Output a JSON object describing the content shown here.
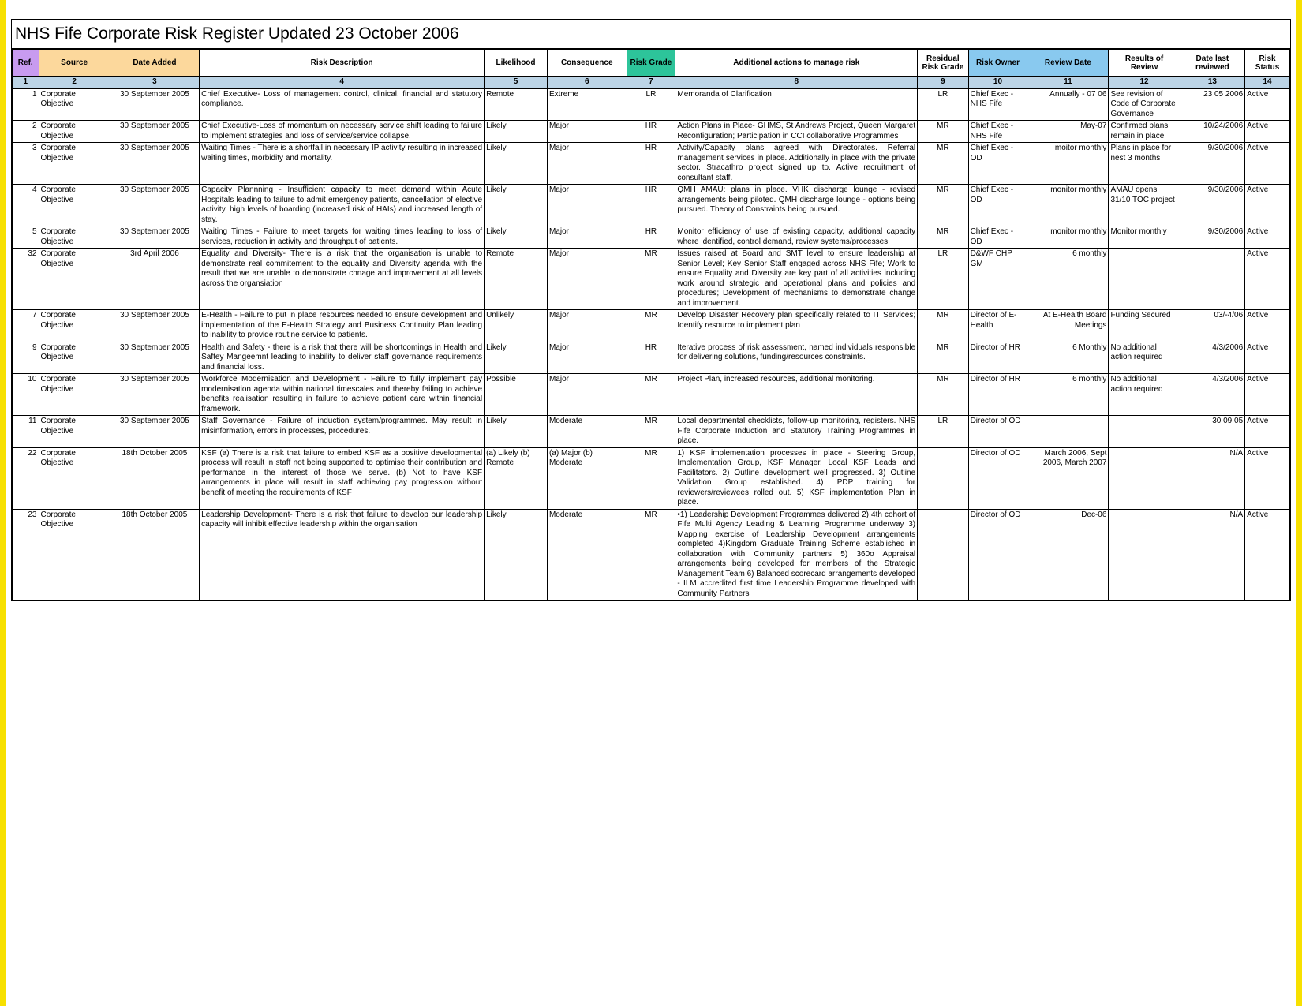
{
  "title": "NHS Fife Corporate Risk Register Updated 23 October 2006",
  "colors": {
    "yellow_border": "#f7e000",
    "header_ref": "#c89bf0",
    "header_source": "#fcd89c",
    "header_date_added": "#fcd89c",
    "header_risk_grade": "#2dc49a",
    "header_risk_owner": "#89c9ef",
    "header_review_date": "#89c9ef",
    "numrow_bg": "#bcd4e6"
  },
  "columns": [
    {
      "key": "ref",
      "label": "Ref."
    },
    {
      "key": "source",
      "label": "Source"
    },
    {
      "key": "date_added",
      "label": "Date Added"
    },
    {
      "key": "risk_description",
      "label": "Risk Description"
    },
    {
      "key": "likelihood",
      "label": "Likelihood"
    },
    {
      "key": "consequence",
      "label": "Consequence"
    },
    {
      "key": "risk_grade",
      "label": "Risk Grade"
    },
    {
      "key": "actions",
      "label": "Additional actions to manage risk"
    },
    {
      "key": "residual_grade",
      "label": "Residual Risk Grade"
    },
    {
      "key": "risk_owner",
      "label": "Risk Owner"
    },
    {
      "key": "review_date",
      "label": "Review Date"
    },
    {
      "key": "results",
      "label": "Results of Review"
    },
    {
      "key": "date_last",
      "label": "Date last reviewed"
    },
    {
      "key": "risk_status",
      "label": "Risk Status"
    }
  ],
  "col_numbers": [
    "1",
    "2",
    "3",
    "4",
    "5",
    "6",
    "7",
    "8",
    "9",
    "10",
    "11",
    "12",
    "13",
    "14"
  ],
  "rows": [
    {
      "ref": "1",
      "source": "Corporate Objective",
      "date_added": "30 September 2005",
      "risk_description": "Chief Executive- Loss of management control, clinical, financial and statutory compliance.",
      "likelihood": "Remote",
      "consequence": "Extreme",
      "risk_grade": "LR",
      "actions": "Memoranda of Clarification",
      "residual_grade": "LR",
      "risk_owner": "Chief Exec - NHS Fife",
      "review_date": "Annually - 07 06",
      "results": "See revision of Code of Corporate Governance",
      "date_last": "23 05 2006",
      "risk_status": "Active"
    },
    {
      "ref": "2",
      "source": "Corporate Objective",
      "date_added": "30 September 2005",
      "risk_description": "Chief Executive-Loss of momentum on necessary service shift leading to failure to implement strategies and loss of service/service collapse.",
      "likelihood": "Likely",
      "consequence": "Major",
      "risk_grade": "HR",
      "actions": "Action Plans in Place- GHMS, St Andrews Project, Queen Margaret Reconfiguration; Participation in CCI collaborative Programmes",
      "residual_grade": "MR",
      "risk_owner": "Chief Exec - NHS Fife",
      "review_date": "May-07",
      "results": "Confirmed plans remain in place",
      "date_last": "10/24/2006",
      "risk_status": "Active"
    },
    {
      "ref": "3",
      "source": "Corporate Objective",
      "date_added": "30 September 2005",
      "risk_description": "Waiting Times - There is a shortfall in necessary IP activity resulting in increased waiting times, morbidity and mortality.",
      "likelihood": "Likely",
      "consequence": "Major",
      "risk_grade": "HR",
      "actions": "Activity/Capacity plans agreed with Directorates. Referral management services in place. Additionally in place with the private sector. Stracathro project signed up to. Active recruitment of consultant staff.",
      "residual_grade": "MR",
      "risk_owner": "Chief Exec - OD",
      "review_date": "moitor monthly",
      "results": "Plans in place for nest 3 months",
      "date_last": "9/30/2006",
      "risk_status": "Active"
    },
    {
      "ref": "4",
      "source": "Corporate Objective",
      "date_added": "30 September 2005",
      "risk_description": "Capacity Plannning - Insufficient capacity to meet demand within Acute Hospitals leading to failure to admit emergency patients, cancellation of elective activity, high levels of boarding (increased risk of HAIs) and increased length of stay.",
      "likelihood": "Likely",
      "consequence": "Major",
      "risk_grade": "HR",
      "actions": "QMH AMAU: plans in place. VHK discharge lounge - revised arrangements being piloted. QMH discharge lounge - options being pursued. Theory of Constraints being pursued.",
      "residual_grade": "MR",
      "risk_owner": "Chief Exec - OD",
      "review_date": "monitor monthly",
      "results": "AMAU opens 31/10 TOC project",
      "date_last": "9/30/2006",
      "risk_status": "Active"
    },
    {
      "ref": "5",
      "source": "Corporate Objective",
      "date_added": "30 September 2005",
      "risk_description": "Waiting Times - Failure to meet targets for waiting times leading to loss of services, reduction in activity and throughput of patients.",
      "likelihood": "Likely",
      "consequence": "Major",
      "risk_grade": "HR",
      "actions": "Monitor efficiency of use of existing capacity, additional capacity where identified, control demand, review systems/processes.",
      "residual_grade": "MR",
      "risk_owner": "Chief Exec - OD",
      "review_date": "monitor monthly",
      "results": "Monitor monthly",
      "date_last": "9/30/2006",
      "risk_status": "Active"
    },
    {
      "ref": "32",
      "source": "Corporate Objective",
      "date_added": "3rd April 2006",
      "risk_description": "Equality and Diversity- There is a risk that the organisation is unable to demonstrate real commitement to the equality and Diversity agenda with the result that we are unable to demonstrate chnage and improvement at all levels across the organsiation",
      "likelihood": "Remote",
      "consequence": "Major",
      "risk_grade": "MR",
      "actions": "Issues raised at Board and SMT level to ensure leadership at Senior Level; Key Senior Staff engaged across NHS Fife; Work to ensure Equality and Diversity are key part of all activities including work around strategic and operational plans and policies and procedures; Development of mechanisms to demonstrate change and improvement.",
      "residual_grade": "LR",
      "risk_owner": "D&WF CHP GM",
      "review_date": "6 monthly",
      "results": "",
      "date_last": "",
      "risk_status": "Active"
    },
    {
      "ref": "7",
      "source": "Corporate Objective",
      "date_added": "30 September 2005",
      "risk_description": "E-Health - Failure to put in place resources needed to ensure development and implementation of the E-Health Strategy and Business Continuity Plan leading to inability to provide routine service to patients.",
      "likelihood": "Unlikely",
      "consequence": "Major",
      "risk_grade": "MR",
      "actions": "Develop Disaster Recovery plan specifically related to IT Services; Identify resource to implement plan",
      "residual_grade": "MR",
      "risk_owner": "Director of E-Health",
      "review_date": "At E-Health Board Meetings",
      "results": "Funding Secured",
      "date_last": "03/-4/06",
      "risk_status": "Active"
    },
    {
      "ref": "9",
      "source": "Corporate Objective",
      "date_added": "30 September 2005",
      "risk_description": "Health and Safety - there is a risk that there will be shortcomings in Health and Saftey Mangeemnt leading to inability to deliver staff governance requirements and financial loss.",
      "likelihood": "Likely",
      "consequence": "Major",
      "risk_grade": "HR",
      "actions": "Iterative process of risk assessment, named individuals responsible for delivering solutions, funding/resources constraints.",
      "residual_grade": "MR",
      "risk_owner": "Director of HR",
      "review_date": "6 Monthly",
      "results": "No additional action required",
      "date_last": "4/3/2006",
      "risk_status": "Active"
    },
    {
      "ref": "10",
      "source": "Corporate Objective",
      "date_added": "30 September 2005",
      "risk_description": "Workforce Modernisation and Development  - Failure to fully implement pay modernisation agenda within national timescales and thereby failing to achieve benefits realisation resulting in failure to achieve patient care within financial framework.",
      "likelihood": "Possible",
      "consequence": "Major",
      "risk_grade": "MR",
      "actions": "Project Plan, increased resources, additional monitoring.",
      "residual_grade": "MR",
      "risk_owner": "Director of HR",
      "review_date": "6 monthly",
      "results": "No additional action required",
      "date_last": "4/3/2006",
      "risk_status": "Active"
    },
    {
      "ref": "11",
      "source": "Corporate Objective",
      "date_added": "30 September 2005",
      "risk_description": "Staff Governance - Failure of induction system/programmes. May result in misinformation, errors in processes, procedures.",
      "likelihood": "Likely",
      "consequence": "Moderate",
      "risk_grade": "MR",
      "actions": "Local departmental checklists, follow-up monitoring, registers. NHS Fife Corporate Induction and Statutory Training Programmes in place.",
      "residual_grade": "LR",
      "risk_owner": "Director of OD",
      "review_date": "",
      "results": "",
      "date_last": "30 09 05",
      "risk_status": "Active"
    },
    {
      "ref": "22",
      "source": "Corporate Objective",
      "date_added": "18th October 2005",
      "risk_description": "KSF (a) There is a risk that failure to embed KSF as a positive developmental process will result in staff not being supported to optimise their contribution and performance in the interest of those we serve. (b) Not to have KSF arrangements in place will result in staff achieving pay progression without benefit of meeting the requirements of KSF",
      "likelihood": "(a) Likely (b) Remote",
      "consequence": "(a) Major (b) Moderate",
      "risk_grade": "MR",
      "actions": "1) KSF implementation processes in place - Steering Group, Implementation Group, KSF Manager, Local KSF Leads and Facilitators. 2) Outline development well progressed. 3) Outline Validation Group established. 4) PDP training for reviewers/reviewees rolled out. 5) KSF implementation Plan in place.",
      "residual_grade": "",
      "risk_owner": "Director of OD",
      "review_date": "March 2006, Sept 2006, March 2007",
      "results": "",
      "date_last": "N/A",
      "risk_status": "Active"
    },
    {
      "ref": "23",
      "source": "Corporate Objective",
      "date_added": "18th October 2005",
      "risk_description": "Leadership Development- There is a risk that failure to develop our leadership capacity will inhibit effective leadership within the organisation",
      "likelihood": "Likely",
      "consequence": "Moderate",
      "risk_grade": "MR",
      "actions": "•1) Leadership Development Programmes delivered 2) 4th cohort of Fife Multi Agency Leading & Learning Programme underway 3) Mapping exercise of Leadership Development arrangements completed 4)Kingdom Graduate Training Scheme established in collaboration with Community partners 5) 360o Appraisal arrangements being developed for members of the Strategic Management Team 6) Balanced scorecard arrangements developed - ILM accredited first time Leadership Programme developed with Community Partners",
      "residual_grade": "",
      "risk_owner": "Director of OD",
      "review_date": "Dec-06",
      "results": "",
      "date_last": "N/A",
      "risk_status": "Active"
    }
  ]
}
